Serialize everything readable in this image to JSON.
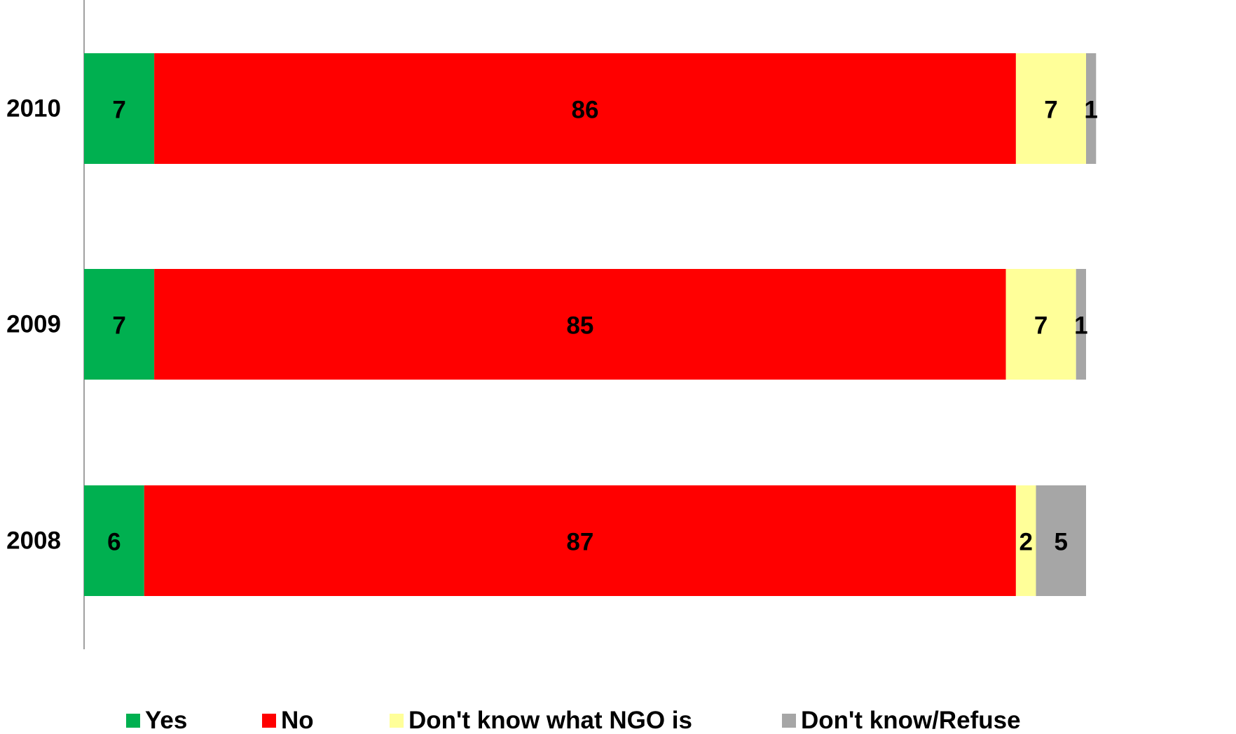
{
  "chart_data": {
    "type": "bar",
    "orientation": "horizontal",
    "stacked": true,
    "categories": [
      "2010",
      "2009",
      "2008"
    ],
    "series": [
      {
        "name": "Yes",
        "color": "#00b050",
        "values": [
          7,
          7,
          6
        ]
      },
      {
        "name": "No",
        "color": "#ff0000",
        "values": [
          86,
          85,
          87
        ]
      },
      {
        "name": "Don't know what NGO is",
        "color": "#ffff99",
        "values": [
          7,
          7,
          2
        ]
      },
      {
        "name": "Don't know/Refuse",
        "color": "#a6a6a6",
        "values": [
          1,
          1,
          5
        ]
      }
    ],
    "xlim": [
      0,
      100
    ],
    "grid": false,
    "legend": "bottom"
  }
}
